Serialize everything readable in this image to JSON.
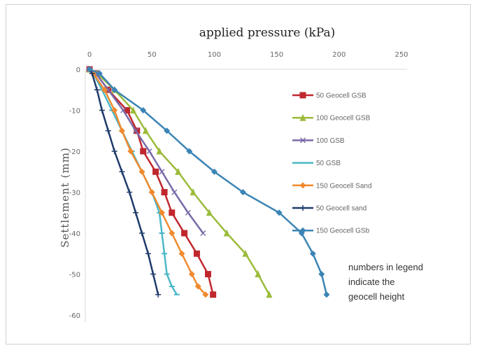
{
  "chart_data": {
    "type": "line",
    "title": "applied pressure (kPa)",
    "xlabel": "applied pressure (kPa)",
    "ylabel": "Settlement (mm)",
    "xlim": [
      0,
      250
    ],
    "ylim": [
      -60,
      0
    ],
    "xticks": [
      "0",
      "50",
      "100",
      "150",
      "200",
      "250"
    ],
    "yticks": [
      "0",
      "-10",
      "-20",
      "-30",
      "-40",
      "-50",
      "-60"
    ],
    "x_axis_position": "top",
    "grid": false,
    "legend_position": "right",
    "annotation": [
      "numbers in legend",
      "indicate the",
      "geocell height"
    ],
    "series": [
      {
        "name": "50 Geocell GSB",
        "color": "#c0272d",
        "marker": "square",
        "x": [
          0,
          5,
          15,
          30,
          38,
          43,
          53,
          60,
          66,
          76,
          86,
          95,
          99
        ],
        "y": [
          0,
          -1,
          -5,
          -10,
          -15,
          -20,
          -25,
          -30,
          -35,
          -40,
          -45,
          -50,
          -55
        ]
      },
      {
        "name": "100 Geocell  GSB",
        "color": "#9bbb3b",
        "marker": "triangle",
        "x": [
          0,
          6,
          20,
          35,
          45,
          56,
          71,
          83,
          96,
          110,
          125,
          135,
          144
        ],
        "y": [
          0,
          -1,
          -5,
          -10,
          -15,
          -20,
          -25,
          -30,
          -35,
          -40,
          -45,
          -50,
          -55
        ]
      },
      {
        "name": "100 GSB",
        "color": "#7a6aa8",
        "marker": "cross",
        "x": [
          0,
          5,
          15,
          27,
          37,
          48,
          58,
          68,
          79,
          91
        ],
        "y": [
          0,
          -1,
          -5,
          -10,
          -15,
          -20,
          -25,
          -30,
          -35,
          -40
        ]
      },
      {
        "name": "50  GSB",
        "color": "#4bb8c8",
        "marker": "dash",
        "x": [
          0,
          3,
          10,
          18,
          26,
          34,
          42,
          50,
          56,
          58,
          60,
          62,
          66,
          70
        ],
        "y": [
          0,
          -1,
          -5,
          -10,
          -15,
          -20,
          -25,
          -30,
          -35,
          -40,
          -45,
          -50,
          -53,
          -55
        ]
      },
      {
        "name": "150 Geocell Sand",
        "color": "#f08a2e",
        "marker": "diamond",
        "x": [
          0,
          3,
          12,
          20,
          26,
          33,
          42,
          50,
          58,
          66,
          74,
          82,
          87,
          93
        ],
        "y": [
          0,
          -1,
          -5,
          -10,
          -15,
          -20,
          -25,
          -30,
          -35,
          -40,
          -45,
          -50,
          -53,
          -55
        ]
      },
      {
        "name": "50 Geocell sand",
        "color": "#1f3b6b",
        "marker": "plus",
        "x": [
          0,
          2,
          6,
          10,
          15,
          20,
          26,
          32,
          37,
          42,
          47,
          51,
          55
        ],
        "y": [
          0,
          -1,
          -5,
          -10,
          -15,
          -20,
          -25,
          -30,
          -35,
          -40,
          -45,
          -50,
          -55
        ]
      },
      {
        "name": "150 Geocell GSb",
        "color": "#3b84b5",
        "marker": "diamond",
        "x": [
          0,
          8,
          20,
          43,
          62,
          80,
          100,
          123,
          152,
          170,
          179,
          186,
          190
        ],
        "y": [
          0,
          -1,
          -5,
          -10,
          -15,
          -20,
          -25,
          -30,
          -35,
          -40,
          -45,
          -50,
          -55
        ]
      }
    ]
  }
}
